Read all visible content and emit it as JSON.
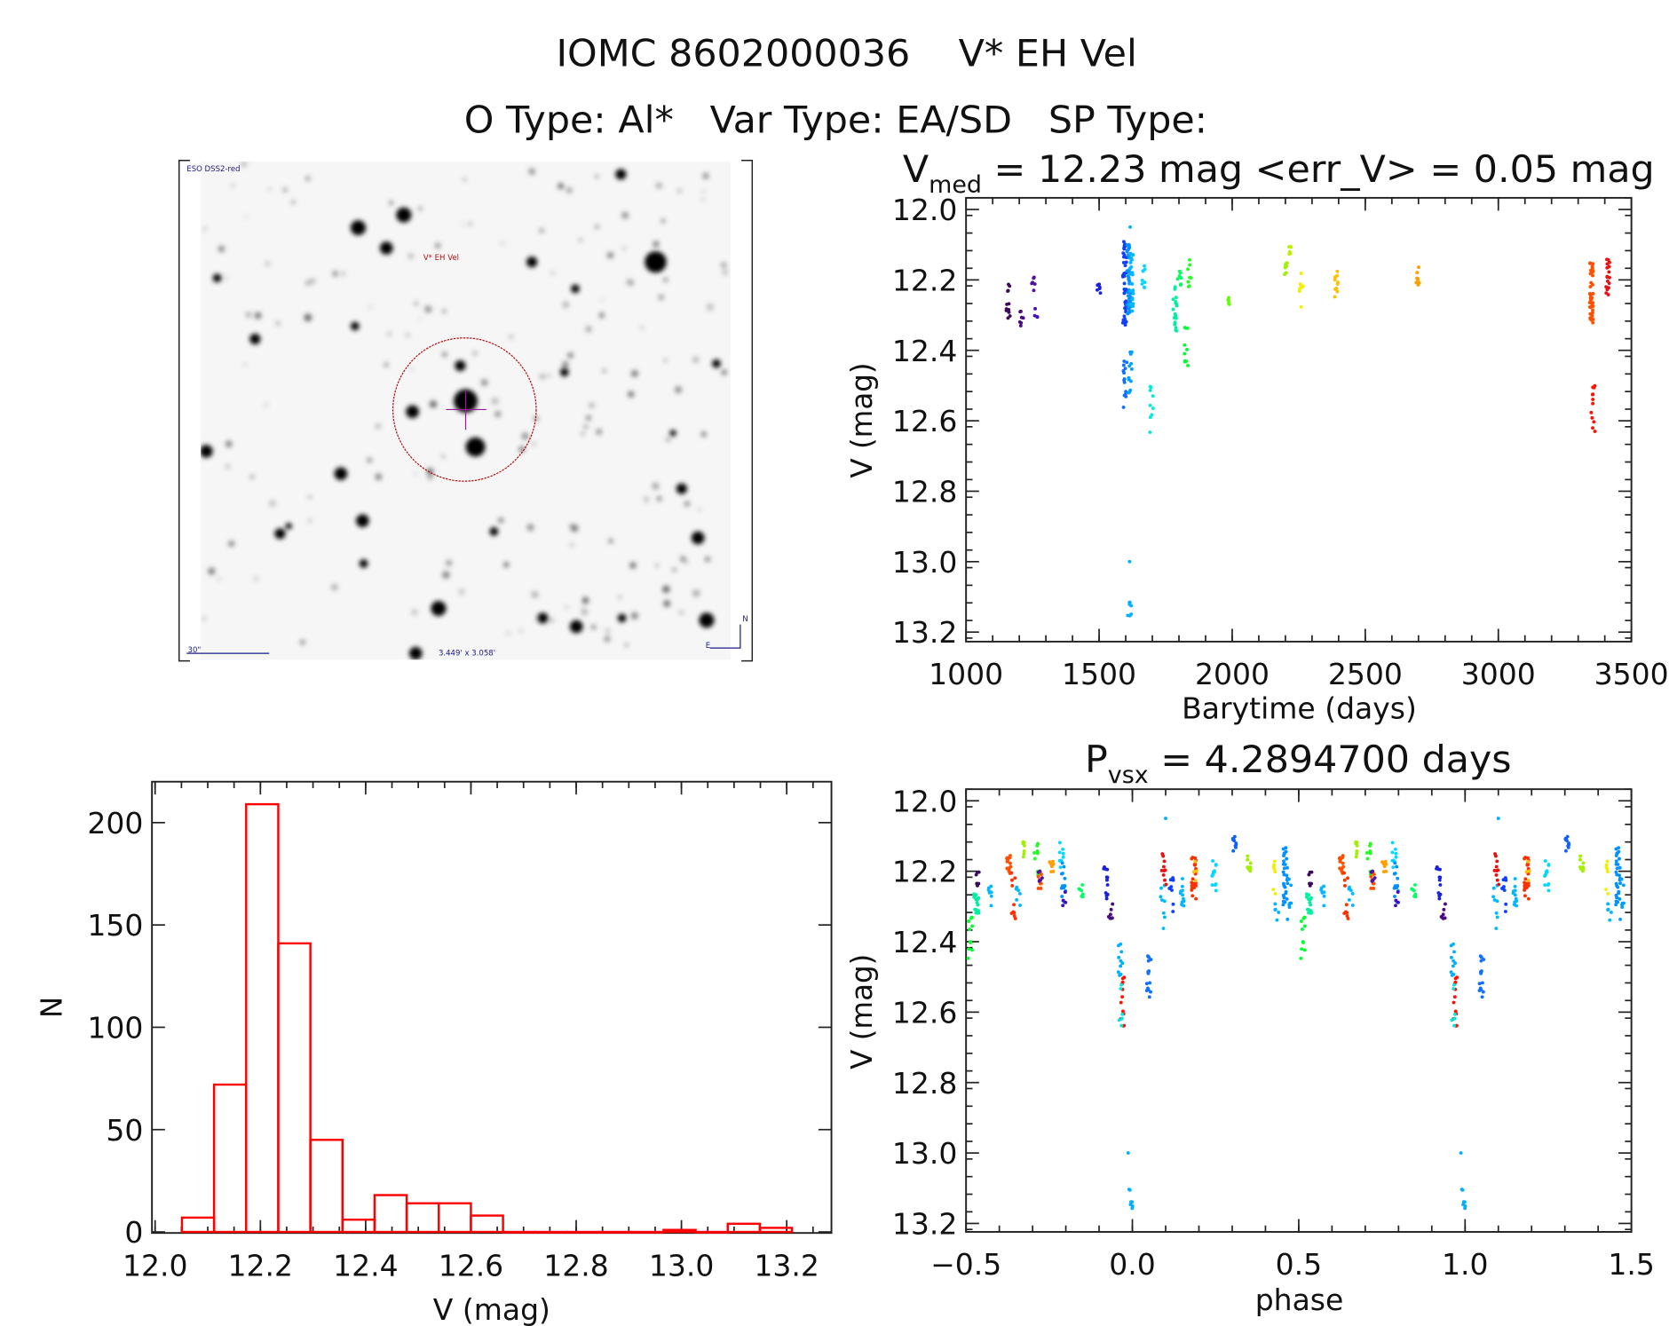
{
  "header": {
    "title": "IOMC 8602000036    V* EH Vel",
    "subtitle": "O Type: Al*   Var Type: EA/SD   SP Type:"
  },
  "image": {
    "survey_label": "ESO DSS2-red",
    "target_label": "V* EH Vel",
    "scale_label": "30\"",
    "fov_label": "3.449' x 3.058'",
    "north_label": "N",
    "east_label": "E",
    "circle_color": "#b01010",
    "crosshair_color": "#9a1a9a"
  },
  "chart_data": [
    {
      "id": "histogram",
      "type": "bar",
      "xlabel": "V (mag)",
      "ylabel": "N",
      "xlim": [
        12.0,
        13.28
      ],
      "ylim": [
        0,
        220
      ],
      "xticks": [
        "12.0",
        "12.2",
        "12.4",
        "12.6",
        "12.8",
        "13.0",
        "13.2"
      ],
      "yticks": [
        "0",
        "50",
        "100",
        "150",
        "200"
      ],
      "bin_start": 12.051,
      "bin_width": 0.061,
      "counts": [
        7,
        72,
        209,
        141,
        45,
        6,
        18,
        14,
        14,
        8,
        0,
        0,
        0,
        0,
        0,
        1,
        0,
        4,
        2
      ],
      "color": "#ff0000"
    },
    {
      "id": "light-curve",
      "type": "scatter",
      "title_main": "V",
      "title_sub": "med",
      "title_rest": " = 12.23 mag <err_V> = 0.05 mag",
      "xlabel": "Barytime (days)",
      "ylabel": "V (mag)",
      "xlim": [
        1000,
        3500
      ],
      "ylim": [
        12.0,
        13.2
      ],
      "y_inverted": true,
      "xticks": [
        "1000",
        "1500",
        "2000",
        "2500",
        "3000",
        "3500"
      ],
      "yticks": [
        "12.0",
        "12.2",
        "12.4",
        "12.6",
        "12.8",
        "13.0",
        "13.2"
      ],
      "clusters": [
        {
          "t": 1158,
          "v": [
            12.2,
            12.31
          ],
          "n": 12,
          "c": "#3b0a5a"
        },
        {
          "t": 1208,
          "v": [
            12.28,
            12.34
          ],
          "n": 7,
          "c": "#4a0a80"
        },
        {
          "t": 1254,
          "v": [
            12.19,
            12.23
          ],
          "n": 6,
          "c": "#5010a0"
        },
        {
          "t": 1265,
          "v": [
            12.26,
            12.31
          ],
          "n": 4,
          "c": "#4010c0"
        },
        {
          "t": 1500,
          "v": [
            12.21,
            12.25
          ],
          "n": 7,
          "c": "#1a20e0"
        },
        {
          "t": 1596,
          "v": [
            12.09,
            12.34
          ],
          "n": 40,
          "c": "#1040ff"
        },
        {
          "t": 1598,
          "v": [
            12.43,
            12.57
          ],
          "n": 14,
          "c": "#1070ff"
        },
        {
          "t": 1612,
          "v": [
            12.1,
            12.3
          ],
          "n": 45,
          "c": "#0090ff"
        },
        {
          "t": 1618,
          "v": [
            12.4,
            12.53
          ],
          "n": 12,
          "c": "#00a0ff"
        },
        {
          "t": 1614,
          "v": [
            13.1,
            13.16
          ],
          "n": 7,
          "c": "#00b0ff"
        },
        {
          "t": 1614,
          "v": [
            13.0,
            13.0
          ],
          "n": 1,
          "c": "#00b0ff"
        },
        {
          "t": 1622,
          "v": [
            12.12,
            12.3
          ],
          "n": 25,
          "c": "#00b8ff"
        },
        {
          "t": 1614,
          "v": [
            12.05,
            12.05
          ],
          "n": 1,
          "c": "#00b0ff"
        },
        {
          "t": 1667,
          "v": [
            12.16,
            12.23
          ],
          "n": 9,
          "c": "#00d8ff"
        },
        {
          "t": 1696,
          "v": [
            12.5,
            12.64
          ],
          "n": 9,
          "c": "#00e8e0"
        },
        {
          "t": 1785,
          "v": [
            12.22,
            12.35
          ],
          "n": 18,
          "c": "#00f0a0"
        },
        {
          "t": 1802,
          "v": [
            12.17,
            12.23
          ],
          "n": 7,
          "c": "#00ff60"
        },
        {
          "t": 1827,
          "v": [
            12.33,
            12.45
          ],
          "n": 10,
          "c": "#00ff30"
        },
        {
          "t": 1840,
          "v": [
            12.12,
            12.22
          ],
          "n": 8,
          "c": "#20ff20"
        },
        {
          "t": 1987,
          "v": [
            12.25,
            12.27
          ],
          "n": 5,
          "c": "#60ff00"
        },
        {
          "t": 2202,
          "v": [
            12.14,
            12.19
          ],
          "n": 7,
          "c": "#a0f000"
        },
        {
          "t": 2215,
          "v": [
            12.1,
            12.15
          ],
          "n": 6,
          "c": "#c0f000"
        },
        {
          "t": 2260,
          "v": [
            12.17,
            12.28
          ],
          "n": 8,
          "c": "#f0f000"
        },
        {
          "t": 2390,
          "v": [
            12.15,
            12.25
          ],
          "n": 10,
          "c": "#ffc000"
        },
        {
          "t": 2696,
          "v": [
            12.16,
            12.22
          ],
          "n": 8,
          "c": "#ffa000"
        },
        {
          "t": 3350,
          "v": [
            12.15,
            12.33
          ],
          "n": 40,
          "c": "#ff5000"
        },
        {
          "t": 3356,
          "v": [
            12.5,
            12.63
          ],
          "n": 12,
          "c": "#ff1000"
        },
        {
          "t": 3412,
          "v": [
            12.14,
            12.25
          ],
          "n": 18,
          "c": "#e81010"
        }
      ]
    },
    {
      "id": "phase-curve",
      "type": "scatter",
      "title_main": "P",
      "title_sub": "vsx",
      "title_rest": " = 4.2894700 days",
      "xlabel": "phase",
      "ylabel": "V (mag)",
      "xlim": [
        -0.5,
        1.5
      ],
      "ylim": [
        12.0,
        13.2
      ],
      "y_inverted": true,
      "xticks": [
        "−0.5",
        "0.0",
        "0.5",
        "1.0",
        "1.5"
      ],
      "yticks": [
        "12.0",
        "12.2",
        "12.4",
        "12.6",
        "12.8",
        "13.0",
        "13.2"
      ],
      "clusters": [
        {
          "p": 0.512,
          "v": [
            12.32,
            12.45
          ],
          "n": 10,
          "c": "#00ff30"
        },
        {
          "p": 0.531,
          "v": [
            12.26,
            12.32
          ],
          "n": 18,
          "c": "#00f0a0"
        },
        {
          "p": 0.535,
          "v": [
            12.2,
            12.25
          ],
          "n": 6,
          "c": "#3b0a5a"
        },
        {
          "p": 0.574,
          "v": [
            12.24,
            12.32
          ],
          "n": 8,
          "c": "#00b8ff"
        },
        {
          "p": 0.628,
          "v": [
            12.15,
            12.22
          ],
          "n": 16,
          "c": "#ff5000"
        },
        {
          "p": 0.642,
          "v": [
            12.2,
            12.34
          ],
          "n": 10,
          "c": "#ff3000"
        },
        {
          "p": 0.657,
          "v": [
            12.23,
            12.3
          ],
          "n": 7,
          "c": "#00b8ff"
        },
        {
          "p": 0.675,
          "v": [
            12.11,
            12.16
          ],
          "n": 7,
          "c": "#a0f000"
        },
        {
          "p": 0.712,
          "v": [
            12.12,
            12.22
          ],
          "n": 8,
          "c": "#20ff20"
        },
        {
          "p": 0.72,
          "v": [
            12.2,
            12.25
          ],
          "n": 8,
          "c": "#ff5000"
        },
        {
          "p": 0.722,
          "v": [
            12.2,
            12.23
          ],
          "n": 5,
          "c": "#5010a0"
        },
        {
          "p": 0.758,
          "v": [
            12.16,
            12.21
          ],
          "n": 8,
          "c": "#ffa000"
        },
        {
          "p": 0.786,
          "v": [
            12.11,
            12.21
          ],
          "n": 9,
          "c": "#00d8ff"
        },
        {
          "p": 0.792,
          "v": [
            12.15,
            12.3
          ],
          "n": 14,
          "c": "#0090ff"
        },
        {
          "p": 0.795,
          "v": [
            12.25,
            12.31
          ],
          "n": 4,
          "c": "#4010c0"
        },
        {
          "p": 0.845,
          "v": [
            12.23,
            12.28
          ],
          "n": 7,
          "c": "#00ff60"
        },
        {
          "p": 0.92,
          "v": [
            12.18,
            12.28
          ],
          "n": 12,
          "c": "#1a20e0"
        },
        {
          "p": 0.934,
          "v": [
            12.28,
            12.34
          ],
          "n": 7,
          "c": "#4a0a80"
        },
        {
          "p": 0.965,
          "v": [
            12.4,
            12.5
          ],
          "n": 10,
          "c": "#00b0ff"
        },
        {
          "p": 0.97,
          "v": [
            12.5,
            12.64
          ],
          "n": 12,
          "c": "#ff1000"
        },
        {
          "p": 0.963,
          "v": [
            12.52,
            12.64
          ],
          "n": 6,
          "c": "#00e8e0"
        },
        {
          "p": 0.995,
          "v": [
            13.1,
            13.16
          ],
          "n": 7,
          "c": "#00b0ff"
        },
        {
          "p": 0.992,
          "v": [
            13.0,
            13.0
          ],
          "n": 1,
          "c": "#00b0ff"
        },
        {
          "p": 0.049,
          "v": [
            12.43,
            12.57
          ],
          "n": 14,
          "c": "#1070ff"
        },
        {
          "p": 0.092,
          "v": [
            12.24,
            12.37
          ],
          "n": 8,
          "c": "#00b8ff"
        },
        {
          "p": 0.094,
          "v": [
            12.05,
            12.05
          ],
          "n": 1,
          "c": "#00b0ff"
        },
        {
          "p": 0.095,
          "v": [
            12.15,
            12.25
          ],
          "n": 10,
          "c": "#e81010"
        },
        {
          "p": 0.118,
          "v": [
            12.18,
            12.34
          ],
          "n": 10,
          "c": "#1040ff"
        },
        {
          "p": 0.149,
          "v": [
            12.22,
            12.3
          ],
          "n": 12,
          "c": "#00b8ff"
        },
        {
          "p": 0.185,
          "v": [
            12.14,
            12.28
          ],
          "n": 22,
          "c": "#ff3000"
        },
        {
          "p": 0.19,
          "v": [
            12.16,
            12.24
          ],
          "n": 4,
          "c": "#ffc000"
        },
        {
          "p": 0.246,
          "v": [
            12.17,
            12.26
          ],
          "n": 12,
          "c": "#00d8ff"
        },
        {
          "p": 0.305,
          "v": [
            12.09,
            12.15
          ],
          "n": 10,
          "c": "#1060ff"
        },
        {
          "p": 0.352,
          "v": [
            12.14,
            12.2
          ],
          "n": 8,
          "c": "#a0f000"
        },
        {
          "p": 0.43,
          "v": [
            12.17,
            12.28
          ],
          "n": 8,
          "c": "#f0f000"
        },
        {
          "p": 0.435,
          "v": [
            12.28,
            12.34
          ],
          "n": 5,
          "c": "#00b8ff"
        },
        {
          "p": 0.46,
          "v": [
            12.13,
            12.3
          ],
          "n": 30,
          "c": "#0090ff"
        },
        {
          "p": 0.472,
          "v": [
            12.22,
            12.34
          ],
          "n": 8,
          "c": "#00a0ff"
        }
      ]
    }
  ]
}
